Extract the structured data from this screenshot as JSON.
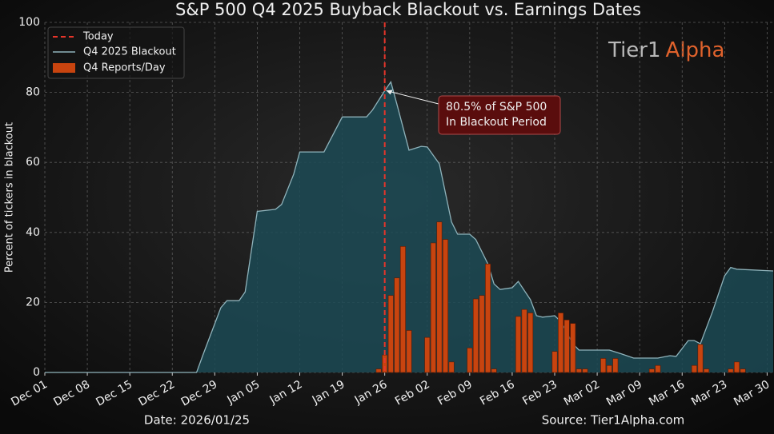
{
  "chart_data": {
    "type": "line",
    "title": "S&P 500 Q4 2025 Buyback Blackout vs. Earnings Dates",
    "ylabel": "Percent of tickers in blackout",
    "xlim": [
      "Dec 01",
      "Mar 31"
    ],
    "xticks": [
      "Dec 01",
      "Dec 08",
      "Dec 15",
      "Dec 22",
      "Dec 29",
      "Jan 05",
      "Jan 12",
      "Jan 19",
      "Jan 26",
      "Feb 02",
      "Feb 09",
      "Feb 16",
      "Feb 23",
      "Mar 02",
      "Mar 09",
      "Mar 16",
      "Mar 23",
      "Mar 30"
    ],
    "ylim": [
      0,
      100
    ],
    "yticks": [
      0,
      20,
      40,
      60,
      80,
      100
    ],
    "grid": true,
    "legend": "upper left",
    "today": {
      "name": "Today",
      "x": "Jan 26",
      "color": "#e8352a"
    },
    "series": [
      {
        "name": "Q4 2025 Blackout",
        "type": "area",
        "color": "#8fb3bb",
        "fill": "#1c4a55",
        "x": [
          "Dec 01",
          "Dec 26",
          "Dec 27",
          "Dec 30",
          "Dec 31",
          "Jan 02",
          "Jan 03",
          "Jan 05",
          "Jan 08",
          "Jan 09",
          "Jan 11",
          "Jan 12",
          "Jan 16",
          "Jan 19",
          "Jan 23",
          "Jan 24",
          "Jan 26",
          "Jan 27",
          "Jan 28",
          "Jan 30",
          "Feb 01",
          "Feb 02",
          "Feb 04",
          "Feb 06",
          "Feb 07",
          "Feb 09",
          "Feb 10",
          "Feb 12",
          "Feb 13",
          "Feb 14",
          "Feb 16",
          "Feb 17",
          "Feb 19",
          "Feb 20",
          "Feb 21",
          "Feb 23",
          "Feb 24",
          "Feb 26",
          "Feb 27",
          "Mar 04",
          "Mar 06",
          "Mar 08",
          "Mar 12",
          "Mar 14",
          "Mar 15",
          "Mar 17",
          "Mar 18",
          "Mar 19",
          "Mar 21",
          "Mar 23",
          "Mar 24",
          "Mar 25",
          "Mar 31"
        ],
        "values": [
          0,
          0,
          4.8,
          18.5,
          20.5,
          20.5,
          23,
          46,
          46.6,
          48,
          56.6,
          63,
          63,
          73,
          73,
          75,
          80.5,
          83,
          76.7,
          63.5,
          64.6,
          64.4,
          59.6,
          43,
          39.5,
          39.5,
          38,
          31,
          25.3,
          23.7,
          24.2,
          26,
          20.8,
          16.2,
          15.8,
          16.2,
          14.6,
          8.2,
          6.4,
          6.4,
          5.3,
          4.1,
          4.1,
          4.8,
          4.6,
          9.1,
          9.1,
          8.2,
          17.4,
          27.6,
          30,
          29.5,
          29
        ]
      },
      {
        "name": "Q4 Reports/Day",
        "type": "bar",
        "color": "#c8440f",
        "x": [
          "Jan 25",
          "Jan 26",
          "Jan 27",
          "Jan 28",
          "Jan 29",
          "Jan 30",
          "Feb 02",
          "Feb 03",
          "Feb 04",
          "Feb 05",
          "Feb 06",
          "Feb 09",
          "Feb 10",
          "Feb 11",
          "Feb 12",
          "Feb 13",
          "Feb 17",
          "Feb 18",
          "Feb 19",
          "Feb 23",
          "Feb 24",
          "Feb 25",
          "Feb 26",
          "Feb 27",
          "Feb 28",
          "Mar 03",
          "Mar 04",
          "Mar 05",
          "Mar 11",
          "Mar 12",
          "Mar 18",
          "Mar 19",
          "Mar 20",
          "Mar 24",
          "Mar 25",
          "Mar 26"
        ],
        "values": [
          1,
          5,
          22,
          27,
          36,
          12,
          10,
          37,
          43,
          38,
          3,
          7,
          21,
          22,
          31,
          1,
          16,
          18,
          17,
          6,
          17,
          15,
          14,
          1,
          1,
          4,
          2,
          4,
          1,
          2,
          2,
          8,
          1,
          1,
          3,
          1
        ]
      }
    ],
    "annotation": {
      "lines": [
        "80.5% of S&P 500",
        "In Blackout Period"
      ],
      "x": "Jan 26",
      "y": 80.5
    },
    "date_note": "Date: 2026/01/25",
    "source": "Source: Tier1Alpha.com",
    "brand": [
      "Tier1",
      "Alpha"
    ]
  }
}
